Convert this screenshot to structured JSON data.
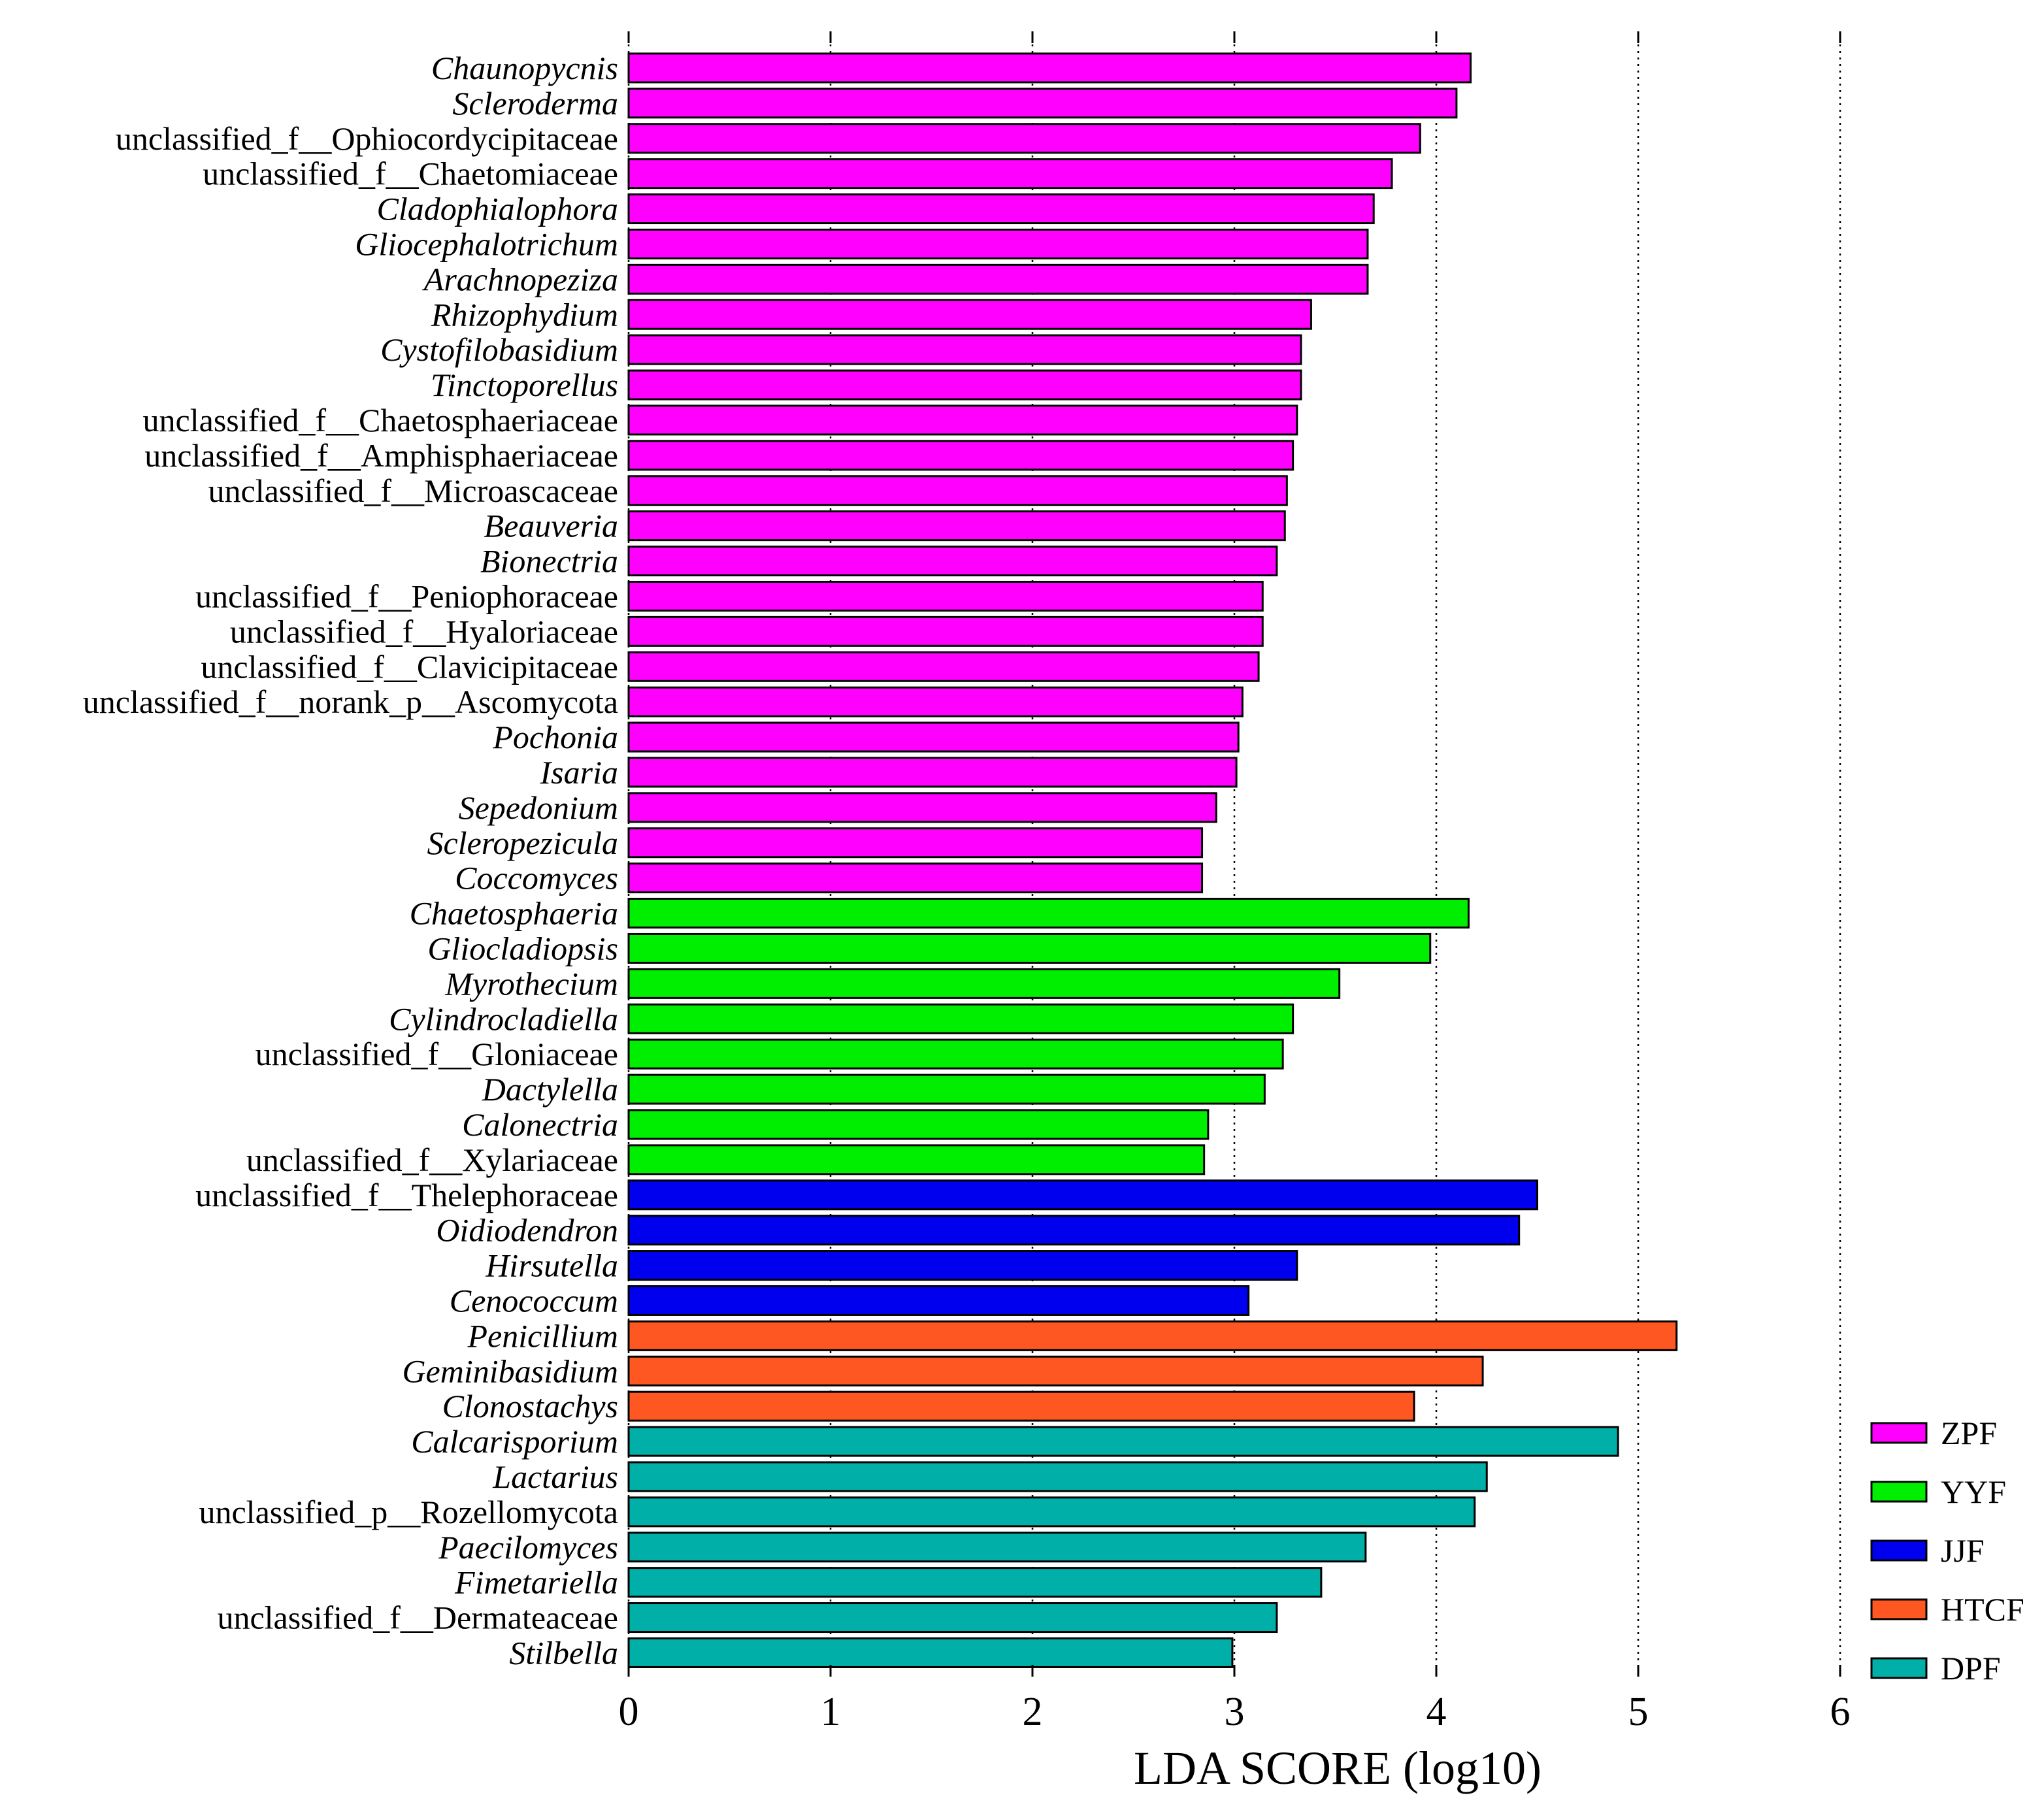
{
  "chart_data": {
    "type": "bar",
    "orientation": "horizontal",
    "xlabel": "LDA SCORE (log10)",
    "xlim": [
      0,
      6
    ],
    "x_ticks": [
      "0",
      "1",
      "2",
      "3",
      "4",
      "5",
      "6"
    ],
    "grid": "vertical dotted",
    "legend_position": "bottom-right",
    "groups": [
      {
        "name": "ZPF",
        "color": "#ff00ff"
      },
      {
        "name": "YYF",
        "color": "#00ee00"
      },
      {
        "name": "JJF",
        "color": "#0000ee"
      },
      {
        "name": "HTCF",
        "color": "#ff5722"
      },
      {
        "name": "DPF",
        "color": "#00b0a8"
      }
    ],
    "bars": [
      {
        "label": "Chaunopycnis",
        "value": 4.17,
        "group": "ZPF",
        "italic": true
      },
      {
        "label": "Scleroderma",
        "value": 4.1,
        "group": "ZPF",
        "italic": true
      },
      {
        "label": "unclassified_f__Ophiocordycipitaceae",
        "value": 3.92,
        "group": "ZPF",
        "italic": false
      },
      {
        "label": "unclassified_f__Chaetomiaceae",
        "value": 3.78,
        "group": "ZPF",
        "italic": false
      },
      {
        "label": "Cladophialophora",
        "value": 3.69,
        "group": "ZPF",
        "italic": true
      },
      {
        "label": "Gliocephalotrichum",
        "value": 3.66,
        "group": "ZPF",
        "italic": true
      },
      {
        "label": "Arachnopeziza",
        "value": 3.66,
        "group": "ZPF",
        "italic": true
      },
      {
        "label": "Rhizophydium",
        "value": 3.38,
        "group": "ZPF",
        "italic": true
      },
      {
        "label": "Cystofilobasidium",
        "value": 3.33,
        "group": "ZPF",
        "italic": true
      },
      {
        "label": "Tinctoporellus",
        "value": 3.33,
        "group": "ZPF",
        "italic": true
      },
      {
        "label": "unclassified_f__Chaetosphaeriaceae",
        "value": 3.31,
        "group": "ZPF",
        "italic": false
      },
      {
        "label": "unclassified_f__Amphisphaeriaceae",
        "value": 3.29,
        "group": "ZPF",
        "italic": false
      },
      {
        "label": "unclassified_f__Microascaceae",
        "value": 3.26,
        "group": "ZPF",
        "italic": false
      },
      {
        "label": "Beauveria",
        "value": 3.25,
        "group": "ZPF",
        "italic": true
      },
      {
        "label": "Bionectria",
        "value": 3.21,
        "group": "ZPF",
        "italic": true
      },
      {
        "label": "unclassified_f__Peniophoraceae",
        "value": 3.14,
        "group": "ZPF",
        "italic": false
      },
      {
        "label": "unclassified_f__Hyaloriaceae",
        "value": 3.14,
        "group": "ZPF",
        "italic": false
      },
      {
        "label": "unclassified_f__Clavicipitaceae",
        "value": 3.12,
        "group": "ZPF",
        "italic": false
      },
      {
        "label": "unclassified_f__norank_p__Ascomycota",
        "value": 3.04,
        "group": "ZPF",
        "italic": false
      },
      {
        "label": "Pochonia",
        "value": 3.02,
        "group": "ZPF",
        "italic": true
      },
      {
        "label": "Isaria",
        "value": 3.01,
        "group": "ZPF",
        "italic": true
      },
      {
        "label": "Sepedonium",
        "value": 2.91,
        "group": "ZPF",
        "italic": true
      },
      {
        "label": "Scleropezicula",
        "value": 2.84,
        "group": "ZPF",
        "italic": true
      },
      {
        "label": "Coccomyces",
        "value": 2.84,
        "group": "ZPF",
        "italic": true
      },
      {
        "label": "Chaetosphaeria",
        "value": 4.16,
        "group": "YYF",
        "italic": true
      },
      {
        "label": "Gliocladiopsis",
        "value": 3.97,
        "group": "YYF",
        "italic": true
      },
      {
        "label": "Myrothecium",
        "value": 3.52,
        "group": "YYF",
        "italic": true
      },
      {
        "label": "Cylindrocladiella",
        "value": 3.29,
        "group": "YYF",
        "italic": true
      },
      {
        "label": "unclassified_f__Gloniaceae",
        "value": 3.24,
        "group": "YYF",
        "italic": false
      },
      {
        "label": "Dactylella",
        "value": 3.15,
        "group": "YYF",
        "italic": true
      },
      {
        "label": "Calonectria",
        "value": 2.87,
        "group": "YYF",
        "italic": true
      },
      {
        "label": "unclassified_f__Xylariaceae",
        "value": 2.85,
        "group": "YYF",
        "italic": false
      },
      {
        "label": "unclassified_f__Thelephoraceae",
        "value": 4.5,
        "group": "JJF",
        "italic": false
      },
      {
        "label": "Oidiodendron",
        "value": 4.41,
        "group": "JJF",
        "italic": true
      },
      {
        "label": "Hirsutella",
        "value": 3.31,
        "group": "JJF",
        "italic": true
      },
      {
        "label": "Cenococcum",
        "value": 3.07,
        "group": "JJF",
        "italic": true
      },
      {
        "label": "Penicillium",
        "value": 5.19,
        "group": "HTCF",
        "italic": true
      },
      {
        "label": "Geminibasidium",
        "value": 4.23,
        "group": "HTCF",
        "italic": true
      },
      {
        "label": "Clonostachys",
        "value": 3.89,
        "group": "HTCF",
        "italic": true
      },
      {
        "label": "Calcarisporium",
        "value": 4.9,
        "group": "DPF",
        "italic": true
      },
      {
        "label": "Lactarius",
        "value": 4.25,
        "group": "DPF",
        "italic": true
      },
      {
        "label": "unclassified_p__Rozellomycota",
        "value": 4.19,
        "group": "DPF",
        "italic": false
      },
      {
        "label": "Paecilomyces",
        "value": 3.65,
        "group": "DPF",
        "italic": true
      },
      {
        "label": "Fimetariella",
        "value": 3.43,
        "group": "DPF",
        "italic": true
      },
      {
        "label": "unclassified_f__Dermateaceae",
        "value": 3.21,
        "group": "DPF",
        "italic": false
      },
      {
        "label": "Stilbella",
        "value": 2.99,
        "group": "DPF",
        "italic": true
      }
    ]
  }
}
